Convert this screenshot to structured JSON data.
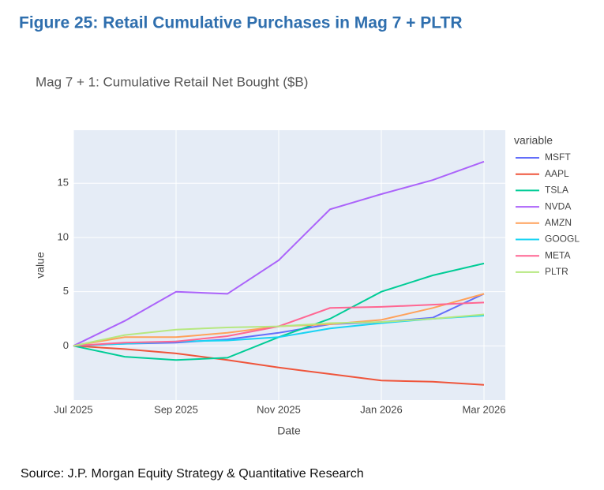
{
  "figure_title": "Figure 25: Retail Cumulative Purchases in Mag 7 + PLTR",
  "source": "Source: J.P. Morgan Equity Strategy & Quantitative Research",
  "chart_data": {
    "type": "line",
    "title": "Mag 7 + 1: Cumulative Retail Net Bought ($B)",
    "x_label": "Date",
    "y_label": "value",
    "legend_title": "variable",
    "x": [
      "2025-07",
      "2025-08",
      "2025-09",
      "2025-10",
      "2025-11",
      "2025-12",
      "2026-01",
      "2026-02",
      "2026-03"
    ],
    "xlim": [
      "2025-07",
      "2026-03"
    ],
    "xticks": [
      {
        "value": "2025-07",
        "label": "Jul 2025"
      },
      {
        "value": "2025-09",
        "label": "Sep 2025"
      },
      {
        "value": "2025-11",
        "label": "Nov 2025"
      },
      {
        "value": "2026-01",
        "label": "Jan 2026"
      },
      {
        "value": "2026-03",
        "label": "Mar 2026"
      }
    ],
    "ylim": [
      -5,
      19.9
    ],
    "yticks": [
      0,
      5,
      10,
      15
    ],
    "grid": true,
    "series": [
      {
        "name": "MSFT",
        "color": "#636efa",
        "values": [
          0,
          0.2,
          0.3,
          0.6,
          1.2,
          2.0,
          2.2,
          2.6,
          4.8
        ]
      },
      {
        "name": "AAPL",
        "color": "#ef553b",
        "values": [
          0,
          -0.3,
          -0.7,
          -1.3,
          -2.0,
          -2.6,
          -3.2,
          -3.3,
          -3.6
        ]
      },
      {
        "name": "TSLA",
        "color": "#00cc96",
        "values": [
          0,
          -1.0,
          -1.3,
          -1.1,
          0.8,
          2.5,
          5.0,
          6.5,
          7.6
        ]
      },
      {
        "name": "NVDA",
        "color": "#ab63fa",
        "values": [
          0,
          2.3,
          5.0,
          4.8,
          7.9,
          12.6,
          14.0,
          15.3,
          17.0
        ]
      },
      {
        "name": "AMZN",
        "color": "#ffa15a",
        "values": [
          0,
          0.8,
          0.8,
          1.2,
          1.8,
          2.0,
          2.4,
          3.5,
          4.8
        ]
      },
      {
        "name": "GOOGL",
        "color": "#19d3f3",
        "values": [
          0,
          0.2,
          0.4,
          0.5,
          0.8,
          1.6,
          2.1,
          2.5,
          2.8
        ]
      },
      {
        "name": "META",
        "color": "#ff6692",
        "values": [
          0,
          0.3,
          0.4,
          0.9,
          1.8,
          3.5,
          3.6,
          3.8,
          4.0
        ]
      },
      {
        "name": "PLTR",
        "color": "#b6e880",
        "values": [
          0,
          1.0,
          1.5,
          1.7,
          1.8,
          2.1,
          2.2,
          2.5,
          2.9
        ]
      }
    ]
  }
}
